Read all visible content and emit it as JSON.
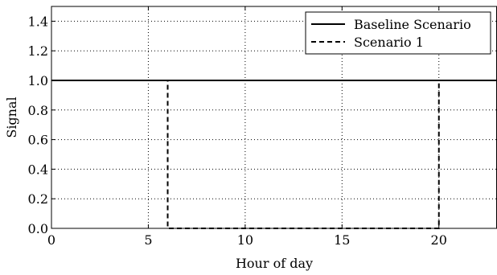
{
  "chart_data": {
    "type": "line",
    "xlabel": "Hour of day",
    "ylabel": "Signal",
    "xlim": [
      0,
      23
    ],
    "ylim": [
      0,
      1.5
    ],
    "xticks": [
      0,
      5,
      10,
      15,
      20
    ],
    "xtick_labels": [
      "0",
      "5",
      "10",
      "15",
      "20"
    ],
    "yticks": [
      0,
      0.2,
      0.4,
      0.6,
      0.8,
      1.0,
      1.2,
      1.4
    ],
    "ytick_labels": [
      "0.0",
      "0.2",
      "0.4",
      "0.6",
      "0.8",
      "1.0",
      "1.2",
      "1.4"
    ],
    "grid": true,
    "legend_position": "top-right",
    "series": [
      {
        "name": "Baseline Scenario",
        "style": "solid",
        "color": "#000000",
        "x": [
          0,
          23
        ],
        "y": [
          1,
          1
        ]
      },
      {
        "name": "Scenario 1",
        "style": "dashed",
        "color": "#000000",
        "x": [
          0,
          6,
          6,
          20,
          20,
          23
        ],
        "y": [
          1,
          1,
          0,
          0,
          1,
          1
        ]
      }
    ]
  }
}
